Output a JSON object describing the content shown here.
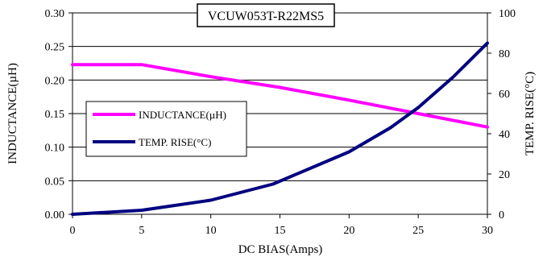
{
  "chart_data": {
    "type": "line",
    "title": "VCUW053T-R22MS5",
    "xlabel": "DC BIAS(Amps)",
    "ylabel_left": "INDUCTANCE(µH)",
    "ylabel_right": "TEMP. RISE(°C)",
    "xlim": [
      0,
      30
    ],
    "ylim_left": [
      0,
      0.3
    ],
    "ylim_right": [
      0,
      100
    ],
    "x_ticks": [
      "0",
      "5",
      "10",
      "15",
      "20",
      "25",
      "30"
    ],
    "y_left_ticks": [
      "0.00",
      "0.05",
      "0.10",
      "0.15",
      "0.20",
      "0.25",
      "0.30"
    ],
    "y_right_ticks": [
      "0",
      "20",
      "40",
      "60",
      "80",
      "100"
    ],
    "grid": "horizontal",
    "legend_position": "middle-left",
    "series": [
      {
        "name": "INDUCTANCE(µH)",
        "axis": "left",
        "color": "#ff00ff",
        "x": [
          0,
          5,
          10,
          15,
          20,
          25,
          30
        ],
        "y": [
          0.223,
          0.223,
          0.205,
          0.189,
          0.17,
          0.15,
          0.13
        ]
      },
      {
        "name": "TEMP. RISE(°C)",
        "axis": "right",
        "color": "#000080",
        "x": [
          0,
          5,
          10,
          14.5,
          20,
          23,
          25,
          27.5,
          30
        ],
        "y": [
          0,
          2,
          7,
          15,
          31,
          43,
          53,
          68,
          85
        ]
      }
    ]
  }
}
